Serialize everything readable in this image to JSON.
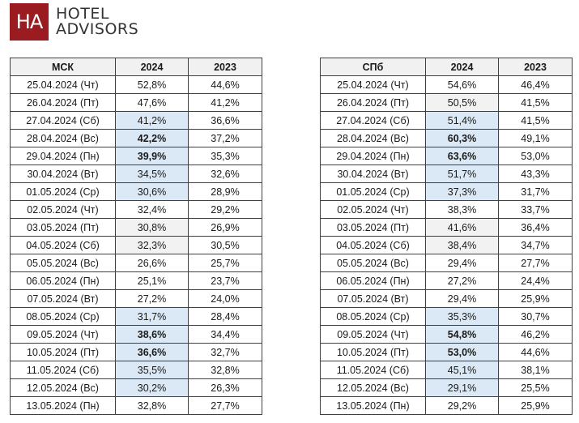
{
  "brand": {
    "mark": "HA",
    "line1": "HOTEL",
    "line2": "ADVISORS",
    "color": "#9b1c20"
  },
  "tables": [
    {
      "city": "МСК",
      "col1": "2024",
      "col2": "2023",
      "rows": [
        {
          "date": "25.04.2024 (Чт)",
          "v2024": "52,8%",
          "v2023": "44,6%",
          "shade": "",
          "bold": false
        },
        {
          "date": "26.04.2024 (Пт)",
          "v2024": "47,6%",
          "v2023": "41,2%",
          "shade": "",
          "bold": false
        },
        {
          "date": "27.04.2024 (Сб)",
          "v2024": "41,2%",
          "v2023": "36,6%",
          "shade": "hl",
          "bold": false
        },
        {
          "date": "28.04.2024 (Вс)",
          "v2024": "42,2%",
          "v2023": "37,2%",
          "shade": "hl",
          "bold": true
        },
        {
          "date": "29.04.2024 (Пн)",
          "v2024": "39,9%",
          "v2023": "35,3%",
          "shade": "hl",
          "bold": true
        },
        {
          "date": "30.04.2024 (Вт)",
          "v2024": "34,5%",
          "v2023": "32,6%",
          "shade": "hl",
          "bold": false
        },
        {
          "date": "01.05.2024 (Ср)",
          "v2024": "30,6%",
          "v2023": "28,9%",
          "shade": "hl",
          "bold": false
        },
        {
          "date": "02.05.2024 (Чт)",
          "v2024": "32,4%",
          "v2023": "29,2%",
          "shade": "",
          "bold": false
        },
        {
          "date": "03.05.2024 (Пт)",
          "v2024": "30,8%",
          "v2023": "26,9%",
          "shade": "wk",
          "bold": false
        },
        {
          "date": "04.05.2024 (Сб)",
          "v2024": "32,3%",
          "v2023": "30,5%",
          "shade": "wk",
          "bold": false
        },
        {
          "date": "05.05.2024 (Вс)",
          "v2024": "26,6%",
          "v2023": "25,7%",
          "shade": "",
          "bold": false
        },
        {
          "date": "06.05.2024 (Пн)",
          "v2024": "25,1%",
          "v2023": "23,7%",
          "shade": "",
          "bold": false
        },
        {
          "date": "07.05.2024 (Вт)",
          "v2024": "27,2%",
          "v2023": "24,0%",
          "shade": "",
          "bold": false
        },
        {
          "date": "08.05.2024 (Ср)",
          "v2024": "31,7%",
          "v2023": "28,4%",
          "shade": "hl",
          "bold": false
        },
        {
          "date": "09.05.2024 (Чт)",
          "v2024": "38,6%",
          "v2023": "34,4%",
          "shade": "hl",
          "bold": true
        },
        {
          "date": "10.05.2024 (Пт)",
          "v2024": "36,6%",
          "v2023": "32,7%",
          "shade": "hl",
          "bold": true
        },
        {
          "date": "11.05.2024 (Сб)",
          "v2024": "35,5%",
          "v2023": "32,8%",
          "shade": "hl",
          "bold": false
        },
        {
          "date": "12.05.2024 (Вс)",
          "v2024": "30,2%",
          "v2023": "26,3%",
          "shade": "hl",
          "bold": false
        },
        {
          "date": "13.05.2024 (Пн)",
          "v2024": "32,8%",
          "v2023": "27,7%",
          "shade": "",
          "bold": false
        }
      ]
    },
    {
      "city": "СПб",
      "col1": "2024",
      "col2": "2023",
      "rows": [
        {
          "date": "25.04.2024 (Чт)",
          "v2024": "54,6%",
          "v2023": "46,4%",
          "shade": "",
          "bold": false
        },
        {
          "date": "26.04.2024 (Пт)",
          "v2024": "50,5%",
          "v2023": "41,5%",
          "shade": "wk",
          "bold": false
        },
        {
          "date": "27.04.2024 (Сб)",
          "v2024": "51,4%",
          "v2023": "41,5%",
          "shade": "hl",
          "bold": false
        },
        {
          "date": "28.04.2024 (Вс)",
          "v2024": "60,3%",
          "v2023": "49,1%",
          "shade": "hl",
          "bold": true
        },
        {
          "date": "29.04.2024 (Пн)",
          "v2024": "63,6%",
          "v2023": "53,0%",
          "shade": "hl",
          "bold": true
        },
        {
          "date": "30.04.2024 (Вт)",
          "v2024": "51,7%",
          "v2023": "43,3%",
          "shade": "hl",
          "bold": false
        },
        {
          "date": "01.05.2024 (Ср)",
          "v2024": "37,3%",
          "v2023": "31,7%",
          "shade": "hl",
          "bold": false
        },
        {
          "date": "02.05.2024 (Чт)",
          "v2024": "38,3%",
          "v2023": "33,7%",
          "shade": "",
          "bold": false
        },
        {
          "date": "03.05.2024 (Пт)",
          "v2024": "41,6%",
          "v2023": "36,4%",
          "shade": "wk",
          "bold": false
        },
        {
          "date": "04.05.2024 (Сб)",
          "v2024": "38,4%",
          "v2023": "34,7%",
          "shade": "wk",
          "bold": false
        },
        {
          "date": "05.05.2024 (Вс)",
          "v2024": "29,4%",
          "v2023": "27,7%",
          "shade": "",
          "bold": false
        },
        {
          "date": "06.05.2024 (Пн)",
          "v2024": "27,2%",
          "v2023": "24,4%",
          "shade": "",
          "bold": false
        },
        {
          "date": "07.05.2024 (Вт)",
          "v2024": "29,4%",
          "v2023": "25,9%",
          "shade": "",
          "bold": false
        },
        {
          "date": "08.05.2024 (Ср)",
          "v2024": "35,3%",
          "v2023": "30,7%",
          "shade": "hl",
          "bold": false
        },
        {
          "date": "09.05.2024 (Чт)",
          "v2024": "54,8%",
          "v2023": "46,2%",
          "shade": "hl",
          "bold": true
        },
        {
          "date": "10.05.2024 (Пт)",
          "v2024": "53,0%",
          "v2023": "44,6%",
          "shade": "hl",
          "bold": true
        },
        {
          "date": "11.05.2024 (Сб)",
          "v2024": "45,1%",
          "v2023": "38,1%",
          "shade": "hl",
          "bold": false
        },
        {
          "date": "12.05.2024 (Вс)",
          "v2024": "29,1%",
          "v2023": "25,5%",
          "shade": "hl",
          "bold": false
        },
        {
          "date": "13.05.2024 (Пн)",
          "v2024": "29,2%",
          "v2023": "25,9%",
          "shade": "",
          "bold": false
        }
      ]
    }
  ]
}
